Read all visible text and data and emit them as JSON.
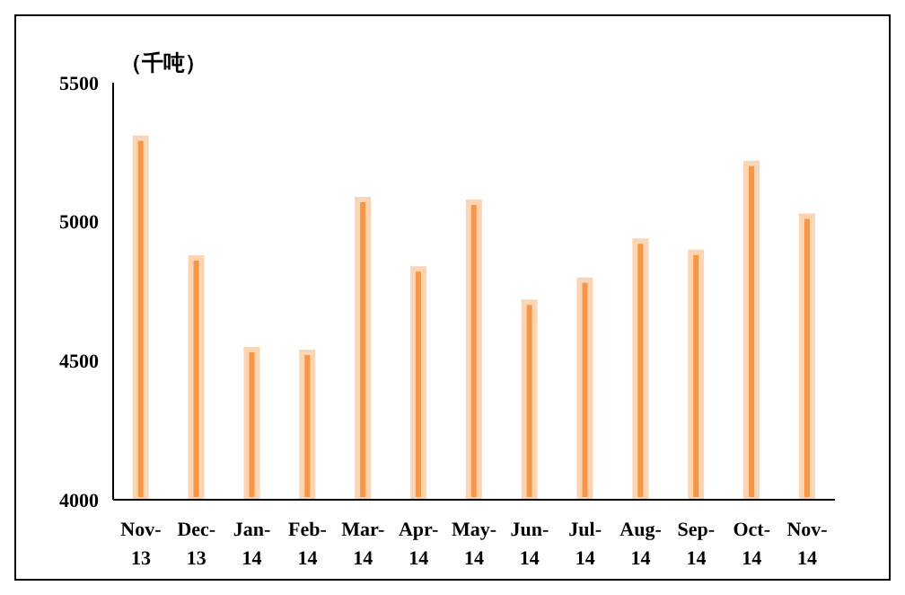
{
  "chart_data": {
    "type": "bar",
    "ylabel": "（千吨）",
    "categories": [
      "Nov-13",
      "Dec-13",
      "Jan-14",
      "Feb-14",
      "Mar-14",
      "Apr-14",
      "May-14",
      "Jun-14",
      "Jul-14",
      "Aug-14",
      "Sep-14",
      "Oct-14",
      "Nov-14"
    ],
    "values": [
      5300,
      4870,
      4540,
      4530,
      5080,
      4830,
      5070,
      4710,
      4790,
      4930,
      4890,
      5210,
      5020
    ],
    "color": "#f79646",
    "ylim": [
      4000,
      5500
    ],
    "yticks": [
      4000,
      4500,
      5000,
      5500
    ],
    "grid": false,
    "legend": false
  }
}
